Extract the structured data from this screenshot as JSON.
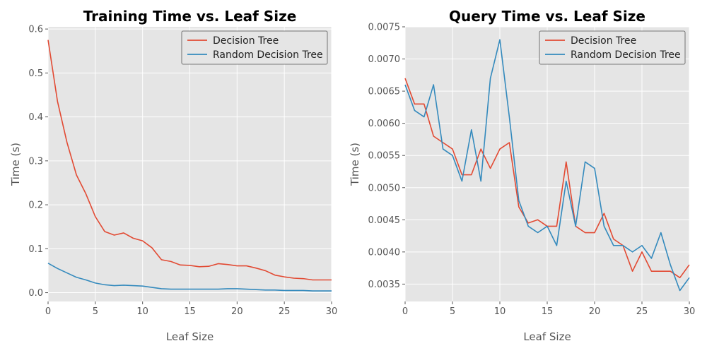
{
  "colors": {
    "decision_tree": "#E24A33",
    "random_decision_tree": "#348ABD",
    "plot_bg": "#E5E5E5",
    "grid": "#FFFFFF"
  },
  "chart_data": [
    {
      "type": "line",
      "title": "Training Time vs. Leaf Size",
      "xlabel": "Leaf Size",
      "ylabel": "Time (s)",
      "xlim": [
        0,
        30
      ],
      "ylim": [
        -0.02,
        0.605
      ],
      "xticks": [
        0,
        5,
        10,
        15,
        20,
        25,
        30
      ],
      "yticks": [
        0.0,
        0.1,
        0.2,
        0.3,
        0.4,
        0.5,
        0.6
      ],
      "ytick_labels": [
        "0.0",
        "0.1",
        "0.2",
        "0.3",
        "0.4",
        "0.5",
        "0.6"
      ],
      "legend": "top-right",
      "grid": true,
      "x": [
        0,
        1,
        2,
        3,
        4,
        5,
        6,
        7,
        8,
        9,
        10,
        11,
        12,
        13,
        14,
        15,
        16,
        17,
        18,
        19,
        20,
        21,
        22,
        23,
        24,
        25,
        26,
        27,
        28,
        29,
        30
      ],
      "series": [
        {
          "name": "Decision Tree",
          "color": "#E24A33",
          "values": [
            0.575,
            0.435,
            0.342,
            0.268,
            0.225,
            0.173,
            0.139,
            0.131,
            0.136,
            0.124,
            0.118,
            0.102,
            0.075,
            0.071,
            0.063,
            0.062,
            0.059,
            0.06,
            0.066,
            0.064,
            0.061,
            0.061,
            0.056,
            0.05,
            0.04,
            0.036,
            0.033,
            0.032,
            0.029,
            0.029,
            0.029
          ]
        },
        {
          "name": "Random Decision Tree",
          "color": "#348ABD",
          "values": [
            0.067,
            0.055,
            0.045,
            0.035,
            0.029,
            0.022,
            0.018,
            0.016,
            0.017,
            0.016,
            0.015,
            0.012,
            0.009,
            0.008,
            0.008,
            0.008,
            0.008,
            0.008,
            0.008,
            0.009,
            0.009,
            0.008,
            0.007,
            0.006,
            0.006,
            0.005,
            0.005,
            0.005,
            0.004,
            0.004,
            0.004
          ]
        }
      ]
    },
    {
      "type": "line",
      "title": "Query Time vs. Leaf Size",
      "xlabel": "Leaf Size",
      "ylabel": "Time (s)",
      "xlim": [
        0,
        30
      ],
      "ylim": [
        0.00323,
        0.0075
      ],
      "xticks": [
        0,
        5,
        10,
        15,
        20,
        25,
        30
      ],
      "yticks": [
        0.0035,
        0.004,
        0.0045,
        0.005,
        0.0055,
        0.006,
        0.0065,
        0.007,
        0.0075
      ],
      "ytick_labels": [
        "0.0035",
        "0.0040",
        "0.0045",
        "0.0050",
        "0.0055",
        "0.0060",
        "0.0065",
        "0.0070",
        "0.0075"
      ],
      "legend": "top-right",
      "grid": true,
      "x": [
        0,
        1,
        2,
        3,
        4,
        5,
        6,
        7,
        8,
        9,
        10,
        11,
        12,
        13,
        14,
        15,
        16,
        17,
        18,
        19,
        20,
        21,
        22,
        23,
        24,
        25,
        26,
        27,
        28,
        29,
        30
      ],
      "series": [
        {
          "name": "Decision Tree",
          "color": "#E24A33",
          "values": [
            0.0067,
            0.0063,
            0.0063,
            0.0058,
            0.0057,
            0.0056,
            0.0052,
            0.0052,
            0.0056,
            0.0053,
            0.0056,
            0.0057,
            0.0047,
            0.00445,
            0.0045,
            0.0044,
            0.0044,
            0.0054,
            0.0044,
            0.0043,
            0.0043,
            0.0046,
            0.0042,
            0.0041,
            0.0037,
            0.004,
            0.0037,
            0.0037,
            0.0037,
            0.0036,
            0.0038
          ]
        },
        {
          "name": "Random Decision Tree",
          "color": "#348ABD",
          "values": [
            0.0066,
            0.0062,
            0.0061,
            0.0066,
            0.0056,
            0.0055,
            0.0051,
            0.0059,
            0.0051,
            0.0067,
            0.0073,
            0.0061,
            0.0048,
            0.0044,
            0.0043,
            0.0044,
            0.0041,
            0.0051,
            0.0044,
            0.0054,
            0.0053,
            0.0044,
            0.0041,
            0.0041,
            0.004,
            0.0041,
            0.0039,
            0.0043,
            0.0038,
            0.0034,
            0.0036
          ]
        }
      ]
    }
  ]
}
